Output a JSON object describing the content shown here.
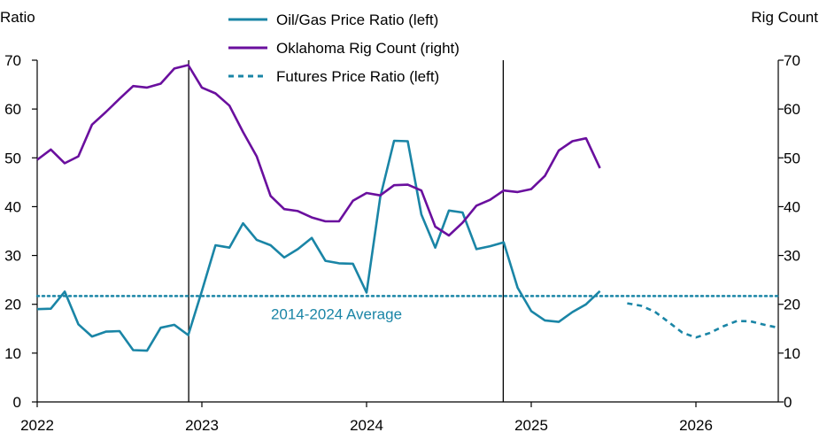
{
  "chart_data": {
    "type": "line",
    "left_axis_title": "Ratio",
    "right_axis_title": "Rig Count",
    "ylim_left": [
      0,
      70
    ],
    "ylim_right": [
      0,
      70
    ],
    "y_ticks": [
      0,
      10,
      20,
      30,
      40,
      50,
      60,
      70
    ],
    "x_range": [
      2022,
      2026.5
    ],
    "x_ticks": [
      {
        "value": 2022,
        "label": "2022"
      },
      {
        "value": 2023,
        "label": "2023"
      },
      {
        "value": 2024,
        "label": "2024"
      },
      {
        "value": 2025,
        "label": "2025"
      },
      {
        "value": 2026,
        "label": "2026"
      }
    ],
    "vertical_markers": [
      2022.92,
      2024.83
    ],
    "legend": [
      {
        "label": "Oil/Gas Price Ratio (left)",
        "color": "#1a85a6",
        "style": "solid"
      },
      {
        "label": "Oklahoma Rig Count (right)",
        "color": "#6a0f9e",
        "style": "solid"
      },
      {
        "label": "Futures Price Ratio (left)",
        "color": "#1a85a6",
        "style": "dashed"
      }
    ],
    "reference_line": {
      "value": 21.7,
      "label": "2014-2024 Average",
      "color": "#1a85a6"
    },
    "series": [
      {
        "name": "Oil/Gas Price Ratio (left)",
        "color": "#1a85a6",
        "dash": "",
        "x": [
          2022.0,
          2022.083,
          2022.167,
          2022.25,
          2022.333,
          2022.417,
          2022.5,
          2022.583,
          2022.667,
          2022.75,
          2022.833,
          2022.917,
          2023.0,
          2023.083,
          2023.167,
          2023.25,
          2023.333,
          2023.417,
          2023.5,
          2023.583,
          2023.667,
          2023.75,
          2023.833,
          2023.917,
          2024.0,
          2024.083,
          2024.167,
          2024.25,
          2024.333,
          2024.417,
          2024.5,
          2024.583,
          2024.667,
          2024.75,
          2024.833,
          2024.917,
          2025.0,
          2025.083,
          2025.167,
          2025.25,
          2025.333,
          2025.417
        ],
        "values": [
          19.0,
          19.1,
          22.6,
          15.9,
          13.4,
          14.4,
          14.5,
          10.6,
          10.5,
          15.2,
          15.8,
          13.7,
          22.7,
          32.1,
          31.6,
          36.6,
          33.2,
          32.1,
          29.6,
          31.3,
          33.6,
          28.9,
          28.4,
          28.3,
          22.4,
          41.9,
          53.5,
          53.4,
          38.4,
          31.6,
          39.2,
          38.8,
          31.3,
          31.9,
          32.7,
          23.4,
          18.6,
          16.7,
          16.4,
          18.4,
          20.0,
          22.7
        ]
      },
      {
        "name": "Oklahoma Rig Count (right)",
        "color": "#6a0f9e",
        "dash": "",
        "x": [
          2022.0,
          2022.083,
          2022.167,
          2022.25,
          2022.333,
          2022.417,
          2022.5,
          2022.583,
          2022.667,
          2022.75,
          2022.833,
          2022.917,
          2023.0,
          2023.083,
          2023.167,
          2023.25,
          2023.333,
          2023.417,
          2023.5,
          2023.583,
          2023.667,
          2023.75,
          2023.833,
          2023.917,
          2024.0,
          2024.083,
          2024.167,
          2024.25,
          2024.333,
          2024.417,
          2024.5,
          2024.583,
          2024.667,
          2024.75,
          2024.833,
          2024.917,
          2025.0,
          2025.083,
          2025.167,
          2025.25,
          2025.333,
          2025.417
        ],
        "values": [
          49.6,
          51.7,
          48.9,
          50.3,
          56.8,
          59.4,
          62.1,
          64.7,
          64.4,
          65.2,
          68.3,
          69.0,
          64.4,
          63.2,
          60.7,
          55.3,
          50.3,
          42.2,
          39.5,
          39.1,
          37.8,
          37.0,
          37.0,
          41.2,
          42.8,
          42.3,
          44.4,
          44.5,
          43.3,
          35.9,
          34.1,
          36.7,
          40.2,
          41.4,
          43.3,
          43.0,
          43.6,
          46.3,
          51.5,
          53.4,
          54.0,
          47.9
        ]
      },
      {
        "name": "Futures Price Ratio (left)",
        "color": "#1a85a6",
        "dash": "6,5",
        "x": [
          2025.583,
          2025.667,
          2025.75,
          2025.833,
          2025.917,
          2026.0,
          2026.083,
          2026.167,
          2026.25,
          2026.333,
          2026.417,
          2026.5
        ],
        "values": [
          20.2,
          19.7,
          18.5,
          16.4,
          14.2,
          13.2,
          14.1,
          15.5,
          16.6,
          16.5,
          15.8,
          15.2
        ]
      }
    ]
  }
}
